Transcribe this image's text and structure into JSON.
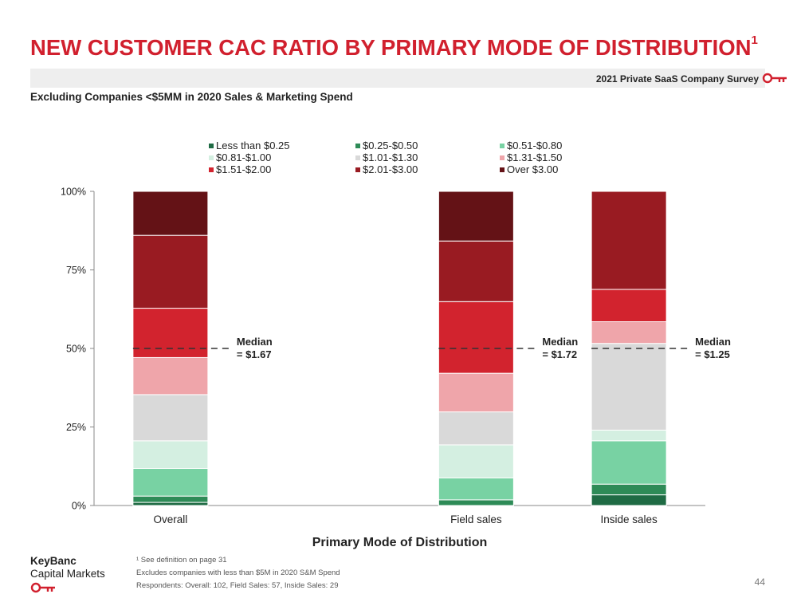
{
  "header": {
    "title": "NEW CUSTOMER CAC RATIO BY PRIMARY MODE OF DISTRIBUTION",
    "title_superscript": "1",
    "survey_label": "2021 Private SaaS Company Survey",
    "subtitle": "Excluding Companies <$5MM in 2020 Sales & Marketing Spend"
  },
  "colors": {
    "title": "#d1202e",
    "banner": "#eeeeee",
    "key_icon": "#d1202e"
  },
  "chart_data": {
    "type": "bar",
    "stacked": true,
    "xlabel": "Primary Mode of Distribution",
    "ylabel": "",
    "ylim": [
      0,
      100
    ],
    "y_ticks": [
      "0%",
      "25%",
      "50%",
      "75%",
      "100%"
    ],
    "legend_placement": "top",
    "grid": false,
    "categories": [
      "Overall",
      "",
      "Field sales",
      "Inside sales"
    ],
    "series": [
      {
        "name": "Less than $0.25",
        "color": "#1f6b44",
        "values": [
          1.0,
          0,
          0,
          3.4
        ]
      },
      {
        "name": "$0.25-$0.50",
        "color": "#2e8b57",
        "values": [
          2.0,
          0,
          1.8,
          3.4
        ]
      },
      {
        "name": "$0.51-$0.80",
        "color": "#78d2a3",
        "values": [
          8.8,
          0,
          7.0,
          13.8
        ]
      },
      {
        "name": "$0.81-$1.00",
        "color": "#d4efe1",
        "values": [
          8.8,
          0,
          10.5,
          3.4
        ]
      },
      {
        "name": "$1.01-$1.30",
        "color": "#d9d9d9",
        "values": [
          14.7,
          0,
          10.5,
          27.6
        ]
      },
      {
        "name": "$1.31-$1.50",
        "color": "#efa5aa",
        "values": [
          11.8,
          0,
          12.3,
          6.9
        ]
      },
      {
        "name": "$1.51-$2.00",
        "color": "#d2232e",
        "values": [
          15.7,
          0,
          22.8,
          10.3
        ]
      },
      {
        "name": "$2.01-$3.00",
        "color": "#991b22",
        "values": [
          23.2,
          0,
          19.3,
          31.2
        ]
      },
      {
        "name": "Over $3.00",
        "color": "#641216",
        "values": [
          14.0,
          0,
          15.8,
          0
        ]
      }
    ],
    "annotations": [
      {
        "category": "Overall",
        "line1": "Median",
        "line2": "= $1.67",
        "side": "right"
      },
      {
        "category": "Field sales",
        "line1": "Median",
        "line2": "= $1.72",
        "side": "right"
      },
      {
        "category": "Inside sales",
        "line1": "Median",
        "line2": "= $1.25",
        "side": "right"
      }
    ],
    "median_level": 50
  },
  "footer": {
    "brand_line1": "KeyBanc",
    "brand_line2": "Capital Markets",
    "note1": "¹ See definition on page 31",
    "note2": "Excludes companies with less than $5M in 2020 S&M Spend",
    "note3": "Respondents: Overall: 102, Field Sales: 57, Inside Sales: 29",
    "page_number": "44"
  }
}
